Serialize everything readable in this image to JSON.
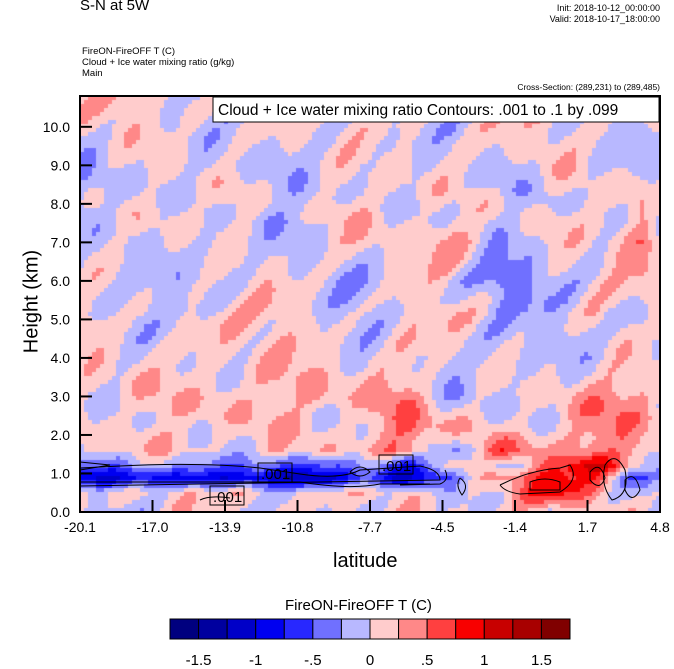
{
  "header": {
    "title": "S-N at 5W",
    "init": "Init: 2018-10-12_00:00:00",
    "valid": "Valid: 2018-10-17_18:00:00",
    "subtitle_lines": [
      "FireON-FireOFF T   (C)",
      "Cloud + Ice water mixing ratio   (g/kg)",
      "Main"
    ],
    "cross_section": "Cross-Section: (289,231) to (289,485)"
  },
  "chart_data": {
    "type": "heatmap",
    "title": "S-N at 5W",
    "contour_info": "Cloud + Ice water mixing ratio Contours: .001 to .1 by .099",
    "contour_labels": [
      ".001",
      ".001",
      ".001"
    ],
    "xlabel": "latitude",
    "ylabel": "Height (km)",
    "xlim": [
      -20.1,
      4.8
    ],
    "ylim": [
      0,
      10.8
    ],
    "x_ticks": [
      "-20.1",
      "-17.0",
      "-13.9",
      "-10.8",
      "-7.7",
      "-4.5",
      "-1.4",
      "1.7",
      "4.8"
    ],
    "y_ticks": [
      "0.0",
      "1.0",
      "2.0",
      "3.0",
      "4.0",
      "5.0",
      "6.0",
      "7.0",
      "8.0",
      "9.0",
      "10.0"
    ],
    "grid_lat": [
      -20,
      -18,
      -16,
      -14,
      -12,
      -10,
      -8,
      -6,
      -4,
      -2,
      0,
      2,
      4,
      5
    ],
    "grid_height": [
      0,
      0.5,
      0.9,
      1.2,
      1.6,
      2.2,
      3,
      4,
      5,
      6,
      7,
      8,
      9,
      10,
      11
    ],
    "values_approx": [
      [
        0.1,
        -0.1,
        0.1,
        -0.1,
        0.1,
        0.1,
        -0.1,
        0.1,
        0.1,
        0.2,
        -0.1,
        0.1,
        0.1,
        -0.1
      ],
      [
        0.1,
        0.1,
        0.1,
        0.1,
        0.1,
        0.1,
        0.1,
        0.1,
        -0.2,
        0.3,
        0.9,
        0.3,
        -0.2,
        0.1
      ],
      [
        -0.8,
        -1.0,
        -0.9,
        -1.0,
        -1.0,
        -1.1,
        -0.8,
        -1.1,
        -0.3,
        0.5,
        0.8,
        0.5,
        -0.5,
        -0.2
      ],
      [
        -0.3,
        -0.3,
        -0.3,
        -0.4,
        -0.4,
        -0.5,
        -0.4,
        -0.8,
        0.4,
        -0.2,
        0.5,
        1.0,
        0.3,
        -0.3
      ],
      [
        0.1,
        0.1,
        0.1,
        0.1,
        0.1,
        0.2,
        0.1,
        0.5,
        -0.2,
        0.5,
        0.3,
        0.4,
        0.4,
        0.1
      ],
      [
        0.1,
        0.1,
        0.1,
        0.2,
        0.1,
        0.1,
        0.1,
        0.5,
        0.3,
        -0.1,
        0.2,
        0.4,
        0.3,
        0.2
      ],
      [
        0.1,
        0.1,
        0.1,
        0.3,
        0.1,
        0.4,
        0.1,
        0.4,
        -0.1,
        -0.1,
        0.1,
        0.3,
        0.4,
        0.1
      ],
      [
        0.1,
        0.1,
        0.1,
        0.1,
        0.1,
        0.1,
        0.1,
        0.1,
        -0.1,
        -0.1,
        0.1,
        -0.1,
        0.1,
        -0.1
      ],
      [
        0.1,
        -0.1,
        0.1,
        0.1,
        0.1,
        0.1,
        -0.1,
        0.1,
        0.1,
        -0.1,
        -0.1,
        0.1,
        -0.3,
        0.1
      ],
      [
        -0.1,
        0.1,
        -0.1,
        -0.1,
        0.1,
        -0.1,
        -0.1,
        0.1,
        -0.1,
        -0.4,
        -0.1,
        0.1,
        0.1,
        -0.1
      ],
      [
        0.1,
        -0.1,
        0.1,
        -0.1,
        -0.1,
        0.1,
        0.1,
        0.1,
        0.3,
        -0.1,
        0.1,
        -0.1,
        0.5,
        0.1
      ],
      [
        -0.1,
        -0.1,
        0.1,
        0.1,
        -0.1,
        -0.1,
        0.1,
        0.1,
        -0.1,
        0.1,
        -0.1,
        0.1,
        0.3,
        -0.4
      ],
      [
        -0.1,
        -0.1,
        0.1,
        -0.1,
        -0.1,
        0.1,
        -0.1,
        0.1,
        0.1,
        -0.1,
        0.1,
        -0.1,
        0.1,
        0.1
      ],
      [
        0.1,
        0.1,
        -0.1,
        0.1,
        0.1,
        -0.1,
        0.1,
        0.1,
        -0.1,
        0.1,
        0.1,
        0.1,
        -0.1,
        0.1
      ],
      [
        0.1,
        0.1,
        0.1,
        -0.1,
        0.1,
        0.1,
        0.1,
        0.1,
        -0.1,
        0.1,
        0.1,
        0.1,
        0.1,
        0.1
      ]
    ],
    "colorbar": {
      "title": "FireON-FireOFF T  (C)",
      "levels": [
        -1.75,
        -1.5,
        -1.25,
        -1,
        -0.75,
        -0.5,
        -0.25,
        0,
        0.25,
        0.5,
        0.75,
        1,
        1.25,
        1.5,
        1.75
      ],
      "colors": [
        "#00007f",
        "#00009f",
        "#0000c8",
        "#0000f0",
        "#2828ff",
        "#7070ff",
        "#b8b8ff",
        "#ffcccc",
        "#ff8888",
        "#ff4040",
        "#f80000",
        "#c80000",
        "#a80000",
        "#800000"
      ],
      "labels": [
        "-1.5",
        "-1",
        "-.5",
        "0",
        ".5",
        "1",
        "1.5"
      ],
      "label_values": [
        -1.5,
        -1,
        -0.5,
        0,
        0.5,
        1,
        1.5
      ]
    }
  }
}
